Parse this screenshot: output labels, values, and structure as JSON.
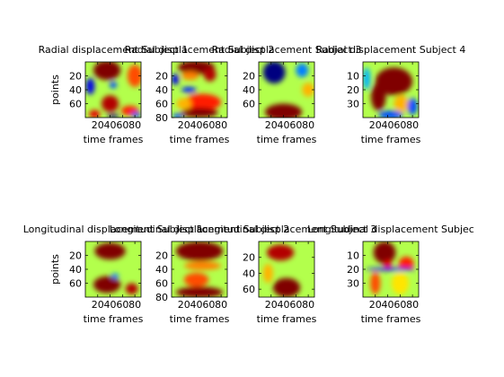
{
  "chart_data": [
    {
      "type": "heatmap",
      "title": "Radial displacement Subject 1",
      "xlabel": "time frames",
      "ylabel": "points",
      "xlim": [
        0,
        90
      ],
      "ylim": [
        0,
        80
      ],
      "xticks": [
        20,
        40,
        60,
        80
      ],
      "yticks": [
        20,
        40,
        60
      ],
      "colormap": "jet",
      "blobs": [
        {
          "x": 35,
          "y": 12,
          "rx": 22,
          "ry": 14,
          "value": 1.0
        },
        {
          "x": 80,
          "y": 20,
          "rx": 12,
          "ry": 16,
          "value": 0.8
        },
        {
          "x": 8,
          "y": 35,
          "rx": 7,
          "ry": 12,
          "value": 0.1
        },
        {
          "x": 45,
          "y": 33,
          "rx": 6,
          "ry": 5,
          "value": 0.2
        },
        {
          "x": 40,
          "y": 60,
          "rx": 14,
          "ry": 12,
          "value": 0.95
        },
        {
          "x": 15,
          "y": 75,
          "rx": 9,
          "ry": 6,
          "value": 0.9
        },
        {
          "x": 72,
          "y": 70,
          "rx": 14,
          "ry": 7,
          "value": 0.85
        },
        {
          "x": 45,
          "y": 78,
          "rx": 10,
          "ry": 3,
          "value": 0.0
        },
        {
          "x": 82,
          "y": 76,
          "rx": 8,
          "ry": 4,
          "value": 0.2
        }
      ]
    },
    {
      "type": "heatmap",
      "title": "Radial displacement Subject 2",
      "xlabel": "time frames",
      "ylabel": "points",
      "xlim": [
        0,
        90
      ],
      "ylim": [
        0,
        80
      ],
      "xticks": [
        20,
        40,
        60,
        80
      ],
      "yticks": [
        20,
        40,
        60,
        80
      ],
      "colormap": "jet",
      "blobs": [
        {
          "x": 40,
          "y": 8,
          "rx": 30,
          "ry": 10,
          "value": 1.0
        },
        {
          "x": 62,
          "y": 18,
          "rx": 10,
          "ry": 10,
          "value": 0.95
        },
        {
          "x": 30,
          "y": 20,
          "rx": 14,
          "ry": 6,
          "value": 0.75
        },
        {
          "x": 6,
          "y": 25,
          "rx": 6,
          "ry": 8,
          "value": 0.1
        },
        {
          "x": 28,
          "y": 40,
          "rx": 12,
          "ry": 4,
          "value": 0.15
        },
        {
          "x": 50,
          "y": 58,
          "rx": 30,
          "ry": 12,
          "value": 0.85
        },
        {
          "x": 20,
          "y": 60,
          "rx": 12,
          "ry": 8,
          "value": 0.7
        },
        {
          "x": 45,
          "y": 73,
          "rx": 30,
          "ry": 7,
          "value": 1.0
        },
        {
          "x": 10,
          "y": 78,
          "rx": 8,
          "ry": 4,
          "value": 0.2
        }
      ]
    },
    {
      "type": "heatmap",
      "title": "Radial displacement Subject 3",
      "xlabel": "time frames",
      "ylabel": "points",
      "xlim": [
        0,
        90
      ],
      "ylim": [
        0,
        80
      ],
      "xticks": [
        20,
        40,
        60,
        80
      ],
      "yticks": [
        20,
        40,
        60
      ],
      "colormap": "jet",
      "blobs": [
        {
          "x": 25,
          "y": 15,
          "rx": 18,
          "ry": 16,
          "value": 0.0
        },
        {
          "x": 70,
          "y": 12,
          "rx": 10,
          "ry": 10,
          "value": 0.25
        },
        {
          "x": 80,
          "y": 40,
          "rx": 10,
          "ry": 10,
          "value": 0.7
        },
        {
          "x": 40,
          "y": 72,
          "rx": 30,
          "ry": 12,
          "value": 1.0
        }
      ]
    },
    {
      "type": "heatmap",
      "title": "Radial displacement Subject 4",
      "xlabel": "time frames",
      "ylabel": "points",
      "xlim": [
        0,
        90
      ],
      "ylim": [
        0,
        40
      ],
      "xticks": [
        20,
        40,
        60,
        80
      ],
      "yticks": [
        10,
        20,
        30
      ],
      "colormap": "jet",
      "blobs": [
        {
          "x": 50,
          "y": 14,
          "rx": 30,
          "ry": 10,
          "value": 1.0
        },
        {
          "x": 25,
          "y": 25,
          "rx": 12,
          "ry": 10,
          "value": 1.0
        },
        {
          "x": 62,
          "y": 30,
          "rx": 12,
          "ry": 6,
          "value": 0.7
        },
        {
          "x": 80,
          "y": 32,
          "rx": 8,
          "ry": 6,
          "value": 0.2
        },
        {
          "x": 6,
          "y": 12,
          "rx": 6,
          "ry": 8,
          "value": 0.3
        },
        {
          "x": 45,
          "y": 38,
          "rx": 20,
          "ry": 3,
          "value": 0.2
        }
      ]
    },
    {
      "type": "heatmap",
      "title": "Longitudinal displacement Subject 1",
      "xlabel": "time frames",
      "ylabel": "points",
      "xlim": [
        0,
        90
      ],
      "ylim": [
        0,
        80
      ],
      "xticks": [
        20,
        40,
        60,
        80
      ],
      "yticks": [
        20,
        40,
        60
      ],
      "colormap": "jet",
      "blobs": [
        {
          "x": 40,
          "y": 14,
          "rx": 25,
          "ry": 12,
          "value": 1.0
        },
        {
          "x": 35,
          "y": 62,
          "rx": 22,
          "ry": 12,
          "value": 1.0
        },
        {
          "x": 75,
          "y": 68,
          "rx": 10,
          "ry": 8,
          "value": 0.95
        },
        {
          "x": 48,
          "y": 50,
          "rx": 6,
          "ry": 4,
          "value": 0.25
        }
      ]
    },
    {
      "type": "heatmap",
      "title": "Longitudinal displacement Subject 2",
      "xlabel": "time frames",
      "ylabel": "points",
      "xlim": [
        0,
        90
      ],
      "ylim": [
        0,
        80
      ],
      "xticks": [
        20,
        40,
        60,
        80
      ],
      "yticks": [
        20,
        40,
        60,
        80
      ],
      "colormap": "jet",
      "blobs": [
        {
          "x": 45,
          "y": 14,
          "rx": 38,
          "ry": 14,
          "value": 1.0
        },
        {
          "x": 50,
          "y": 35,
          "rx": 30,
          "ry": 6,
          "value": 0.75
        },
        {
          "x": 40,
          "y": 55,
          "rx": 20,
          "ry": 10,
          "value": 0.8
        },
        {
          "x": 45,
          "y": 73,
          "rx": 38,
          "ry": 8,
          "value": 1.0
        }
      ]
    },
    {
      "type": "heatmap",
      "title": "Longitudinal displacement Subject 3",
      "xlabel": "time frames",
      "ylabel": "points",
      "xlim": [
        0,
        90
      ],
      "ylim": [
        0,
        70
      ],
      "xticks": [
        20,
        40,
        60,
        80
      ],
      "yticks": [
        20,
        40,
        60
      ],
      "colormap": "jet",
      "blobs": [
        {
          "x": 35,
          "y": 14,
          "rx": 22,
          "ry": 10,
          "value": 0.95
        },
        {
          "x": 45,
          "y": 58,
          "rx": 22,
          "ry": 12,
          "value": 1.0
        },
        {
          "x": 15,
          "y": 40,
          "rx": 8,
          "ry": 12,
          "value": 0.7
        }
      ]
    },
    {
      "type": "heatmap",
      "title": "Longitudinal displacement Subjec",
      "xlabel": "time frames",
      "ylabel": "points",
      "xlim": [
        0,
        90
      ],
      "ylim": [
        0,
        40
      ],
      "xticks": [
        20,
        40,
        60,
        80
      ],
      "yticks": [
        10,
        20,
        30
      ],
      "colormap": "jet",
      "blobs": [
        {
          "x": 35,
          "y": 8,
          "rx": 18,
          "ry": 8,
          "value": 1.0
        },
        {
          "x": 40,
          "y": 17,
          "rx": 6,
          "ry": 4,
          "value": 0.9
        },
        {
          "x": 70,
          "y": 16,
          "rx": 12,
          "ry": 5,
          "value": 0.85
        },
        {
          "x": 45,
          "y": 20,
          "rx": 40,
          "ry": 1.2,
          "value": 0.15
        },
        {
          "x": 20,
          "y": 30,
          "rx": 8,
          "ry": 8,
          "value": 0.8
        },
        {
          "x": 60,
          "y": 30,
          "rx": 14,
          "ry": 8,
          "value": 0.65
        }
      ]
    }
  ]
}
